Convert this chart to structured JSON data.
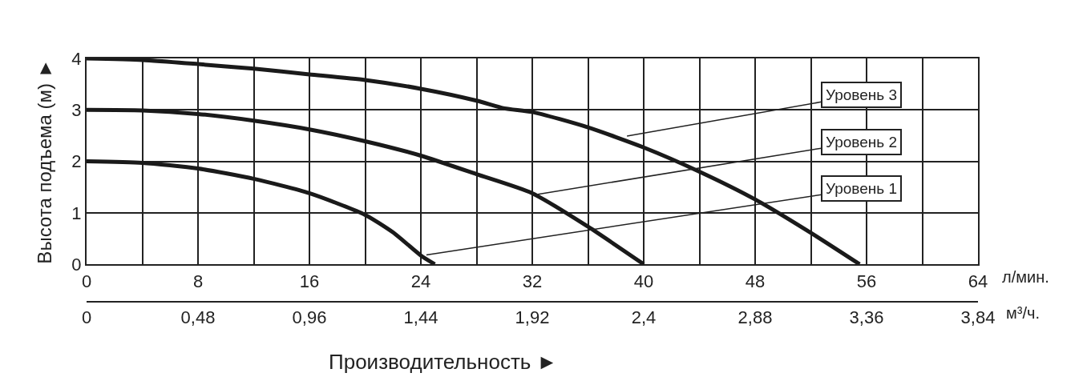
{
  "chart_data": {
    "type": "line",
    "xlabel": "л/мин.",
    "x2label": "м³/ч.",
    "ylabel": "Высота подъема (м) ►",
    "xlim": [
      0,
      64
    ],
    "xticks": [
      0,
      {
        "value": 4,
        "label": null
      },
      8,
      {
        "value": 12,
        "label": null
      },
      16,
      {
        "value": 20,
        "label": null
      },
      24,
      {
        "value": 28,
        "label": null
      },
      32,
      {
        "value": 36,
        "label": null
      },
      40,
      {
        "value": 44,
        "label": null
      },
      48,
      {
        "value": 52,
        "label": null
      },
      56,
      {
        "value": 60,
        "label": null
      },
      64
    ],
    "x2lim": [
      0,
      3.84
    ],
    "x2ticks": [
      0,
      {
        "value": 0.48,
        "label": "0,48"
      },
      {
        "value": 0.96,
        "label": "0,96"
      },
      {
        "value": 1.44,
        "label": "1,44"
      },
      {
        "value": 1.92,
        "label": "1,92"
      },
      {
        "value": 2.4,
        "label": "2,4"
      },
      {
        "value": 2.88,
        "label": "2,88"
      },
      {
        "value": 3.36,
        "label": "3,36"
      },
      {
        "value": 3.84,
        "label": "3,84"
      }
    ],
    "ylim": [
      0,
      4
    ],
    "yticks": [
      0,
      1,
      2,
      3,
      4
    ],
    "grid": true,
    "marker": "none",
    "line_style": "solid",
    "series": [
      {
        "color": "#1a1a1a",
        "x": [
          0,
          4,
          8,
          12,
          16,
          20,
          24,
          28,
          30,
          32,
          36,
          40,
          44,
          48,
          52,
          55.5
        ],
        "values": [
          4.0,
          3.97,
          3.89,
          3.8,
          3.69,
          3.58,
          3.41,
          3.18,
          3.03,
          2.96,
          2.66,
          2.27,
          1.8,
          1.26,
          0.61,
          0
        ]
      },
      {
        "color": "#1a1a1a",
        "x": [
          0,
          4,
          8,
          12,
          16,
          20,
          24,
          28,
          32,
          36,
          40
        ],
        "values": [
          3.0,
          2.99,
          2.92,
          2.79,
          2.62,
          2.39,
          2.11,
          1.75,
          1.38,
          0.73,
          0
        ]
      },
      {
        "color": "#1a1a1a",
        "x": [
          0,
          4,
          8,
          12,
          16,
          20,
          22,
          24,
          25
        ],
        "values": [
          2.0,
          1.97,
          1.86,
          1.66,
          1.38,
          0.96,
          0.62,
          0.17,
          0
        ]
      }
    ],
    "annotations": [
      {
        "text": "Уровень 3",
        "x": 38.8,
        "y": 2.49
      },
      {
        "text": "Уровень 2",
        "x": 32.4,
        "y": 1.36
      },
      {
        "text": "Уровень 1",
        "x": 24.4,
        "y": 0.18
      },
      "Производительность ►"
    ]
  }
}
